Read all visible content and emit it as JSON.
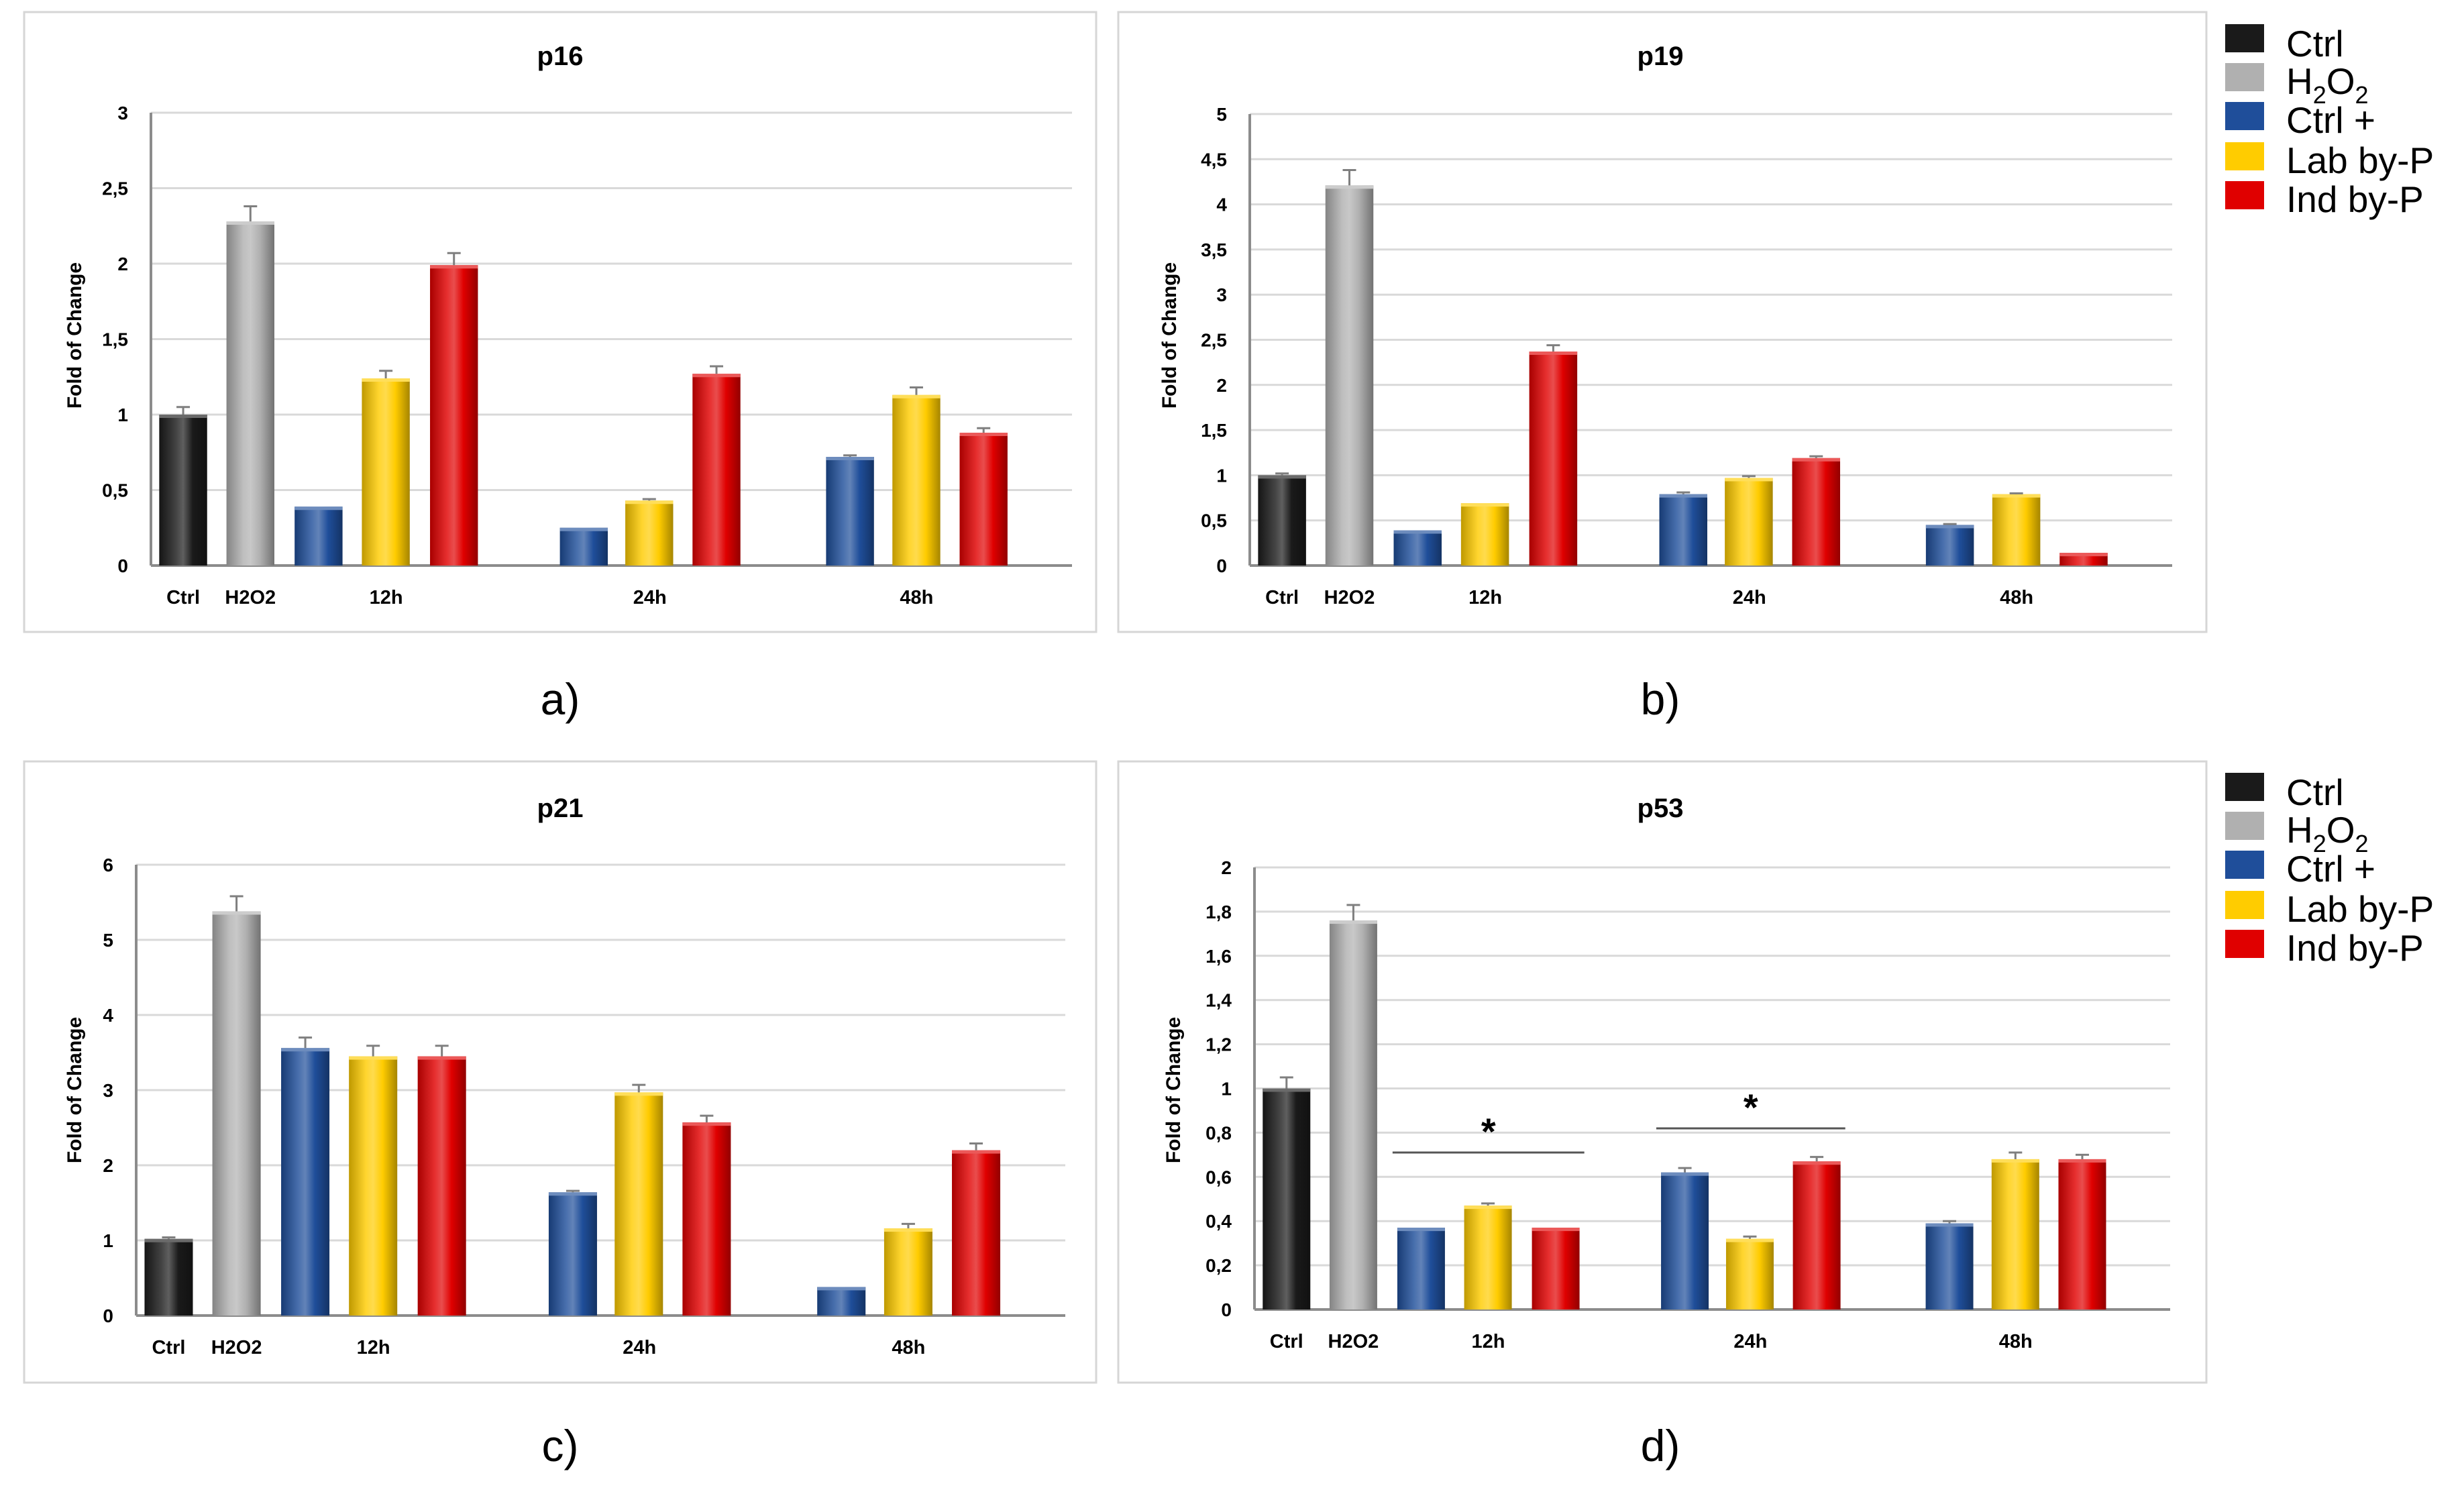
{
  "legend": {
    "items": [
      {
        "key": "ctrl",
        "label": "Ctrl",
        "color": "#1a1a1a"
      },
      {
        "key": "h2o2",
        "label": "H2O2",
        "color": "#b0b0b0"
      },
      {
        "key": "ctrl_plus",
        "label": "Ctrl +",
        "color": "#1f4e9a"
      },
      {
        "key": "lab",
        "label": "Lab by-P",
        "color": "#ffcc00"
      },
      {
        "key": "ind",
        "label": "Ind by-P",
        "color": "#e00000"
      }
    ]
  },
  "chart_data": [
    {
      "id": "p16",
      "panel_label": "a)",
      "type": "bar",
      "title": "p16",
      "ylabel": "Fold of Change",
      "ylim": [
        0,
        3
      ],
      "ticks": [
        "0",
        "0,5",
        "1",
        "1,5",
        "2",
        "2,5",
        "3"
      ],
      "groups": [
        "Ctrl",
        "H2O2",
        "12h",
        "24h",
        "48h"
      ],
      "bars": [
        {
          "group": "Ctrl",
          "series": "Ctrl",
          "value": 1.0,
          "error": 0.05
        },
        {
          "group": "H2O2",
          "series": "H2O2",
          "value": 2.28,
          "error": 0.1
        },
        {
          "group": "12h",
          "series": "Ctrl +",
          "value": 0.39,
          "error": 0.0
        },
        {
          "group": "12h",
          "series": "Lab by-P",
          "value": 1.24,
          "error": 0.05
        },
        {
          "group": "12h",
          "series": "Ind by-P",
          "value": 1.99,
          "error": 0.08
        },
        {
          "group": "24h",
          "series": "Ctrl +",
          "value": 0.25,
          "error": 0.0
        },
        {
          "group": "24h",
          "series": "Lab by-P",
          "value": 0.43,
          "error": 0.01
        },
        {
          "group": "24h",
          "series": "Ind by-P",
          "value": 1.27,
          "error": 0.05
        },
        {
          "group": "48h",
          "series": "Ctrl +",
          "value": 0.72,
          "error": 0.01
        },
        {
          "group": "48h",
          "series": "Lab by-P",
          "value": 1.13,
          "error": 0.05
        },
        {
          "group": "48h",
          "series": "Ind by-P",
          "value": 0.88,
          "error": 0.03
        }
      ],
      "annotations": []
    },
    {
      "id": "p19",
      "panel_label": "b)",
      "type": "bar",
      "title": "p19",
      "ylabel": "Fold of Change",
      "ylim": [
        0,
        5
      ],
      "ticks": [
        "0",
        "0,5",
        "1",
        "1,5",
        "2",
        "2,5",
        "3",
        "3,5",
        "4",
        "4,5",
        "5"
      ],
      "groups": [
        "Ctrl",
        "H2O2",
        "12h",
        "24h",
        "48h"
      ],
      "bars": [
        {
          "group": "Ctrl",
          "series": "Ctrl",
          "value": 1.0,
          "error": 0.02
        },
        {
          "group": "H2O2",
          "series": "H2O2",
          "value": 4.21,
          "error": 0.17
        },
        {
          "group": "12h",
          "series": "Ctrl +",
          "value": 0.39,
          "error": 0.0
        },
        {
          "group": "12h",
          "series": "Lab by-P",
          "value": 0.69,
          "error": 0.0
        },
        {
          "group": "12h",
          "series": "Ind by-P",
          "value": 2.37,
          "error": 0.07
        },
        {
          "group": "24h",
          "series": "Ctrl +",
          "value": 0.79,
          "error": 0.02
        },
        {
          "group": "24h",
          "series": "Lab by-P",
          "value": 0.97,
          "error": 0.02
        },
        {
          "group": "24h",
          "series": "Ind by-P",
          "value": 1.19,
          "error": 0.02
        },
        {
          "group": "48h",
          "series": "Ctrl +",
          "value": 0.45,
          "error": 0.01
        },
        {
          "group": "48h",
          "series": "Lab by-P",
          "value": 0.79,
          "error": 0.01
        },
        {
          "group": "48h",
          "series": "Ind by-P",
          "value": 0.14,
          "error": 0.0
        }
      ],
      "annotations": []
    },
    {
      "id": "p21",
      "panel_label": "c)",
      "type": "bar",
      "title": "p21",
      "ylabel": "Fold of Change",
      "ylim": [
        0,
        6
      ],
      "ticks": [
        "0",
        "1",
        "2",
        "3",
        "4",
        "5",
        "6"
      ],
      "groups": [
        "Ctrl",
        "H2O2",
        "12h",
        "24h",
        "48h"
      ],
      "bars": [
        {
          "group": "Ctrl",
          "series": "Ctrl",
          "value": 1.02,
          "error": 0.02
        },
        {
          "group": "H2O2",
          "series": "H2O2",
          "value": 5.38,
          "error": 0.2
        },
        {
          "group": "12h",
          "series": "Ctrl +",
          "value": 3.56,
          "error": 0.14
        },
        {
          "group": "12h",
          "series": "Lab by-P",
          "value": 3.45,
          "error": 0.14
        },
        {
          "group": "12h",
          "series": "Ind by-P",
          "value": 3.45,
          "error": 0.14
        },
        {
          "group": "24h",
          "series": "Ctrl +",
          "value": 1.64,
          "error": 0.02
        },
        {
          "group": "24h",
          "series": "Lab by-P",
          "value": 2.97,
          "error": 0.1
        },
        {
          "group": "24h",
          "series": "Ind by-P",
          "value": 2.57,
          "error": 0.09
        },
        {
          "group": "48h",
          "series": "Ctrl +",
          "value": 0.38,
          "error": 0.0
        },
        {
          "group": "48h",
          "series": "Lab by-P",
          "value": 1.16,
          "error": 0.06
        },
        {
          "group": "48h",
          "series": "Ind by-P",
          "value": 2.2,
          "error": 0.09
        }
      ],
      "annotations": []
    },
    {
      "id": "p53",
      "panel_label": "d)",
      "type": "bar",
      "title": "p53",
      "ylabel": "Fold of Change",
      "ylim": [
        0,
        2
      ],
      "ticks": [
        "0",
        "0,2",
        "0,4",
        "0,6",
        "0,8",
        "1",
        "1,2",
        "1,4",
        "1,6",
        "1,8",
        "2"
      ],
      "groups": [
        "Ctrl",
        "H2O2",
        "12h",
        "24h",
        "48h"
      ],
      "bars": [
        {
          "group": "Ctrl",
          "series": "Ctrl",
          "value": 1.0,
          "error": 0.05
        },
        {
          "group": "H2O2",
          "series": "H2O2",
          "value": 1.76,
          "error": 0.07
        },
        {
          "group": "12h",
          "series": "Ctrl +",
          "value": 0.37,
          "error": 0.0
        },
        {
          "group": "12h",
          "series": "Lab by-P",
          "value": 0.47,
          "error": 0.01
        },
        {
          "group": "12h",
          "series": "Ind by-P",
          "value": 0.37,
          "error": 0.0
        },
        {
          "group": "24h",
          "series": "Ctrl +",
          "value": 0.62,
          "error": 0.02
        },
        {
          "group": "24h",
          "series": "Lab by-P",
          "value": 0.32,
          "error": 0.01
        },
        {
          "group": "24h",
          "series": "Ind by-P",
          "value": 0.67,
          "error": 0.02
        },
        {
          "group": "48h",
          "series": "Ctrl +",
          "value": 0.39,
          "error": 0.01
        },
        {
          "group": "48h",
          "series": "Lab by-P",
          "value": 0.68,
          "error": 0.03
        },
        {
          "group": "48h",
          "series": "Ind by-P",
          "value": 0.68,
          "error": 0.02
        }
      ],
      "annotations": [
        {
          "group": "12h",
          "text": "*"
        },
        {
          "group": "24h",
          "text": "*"
        }
      ]
    }
  ]
}
